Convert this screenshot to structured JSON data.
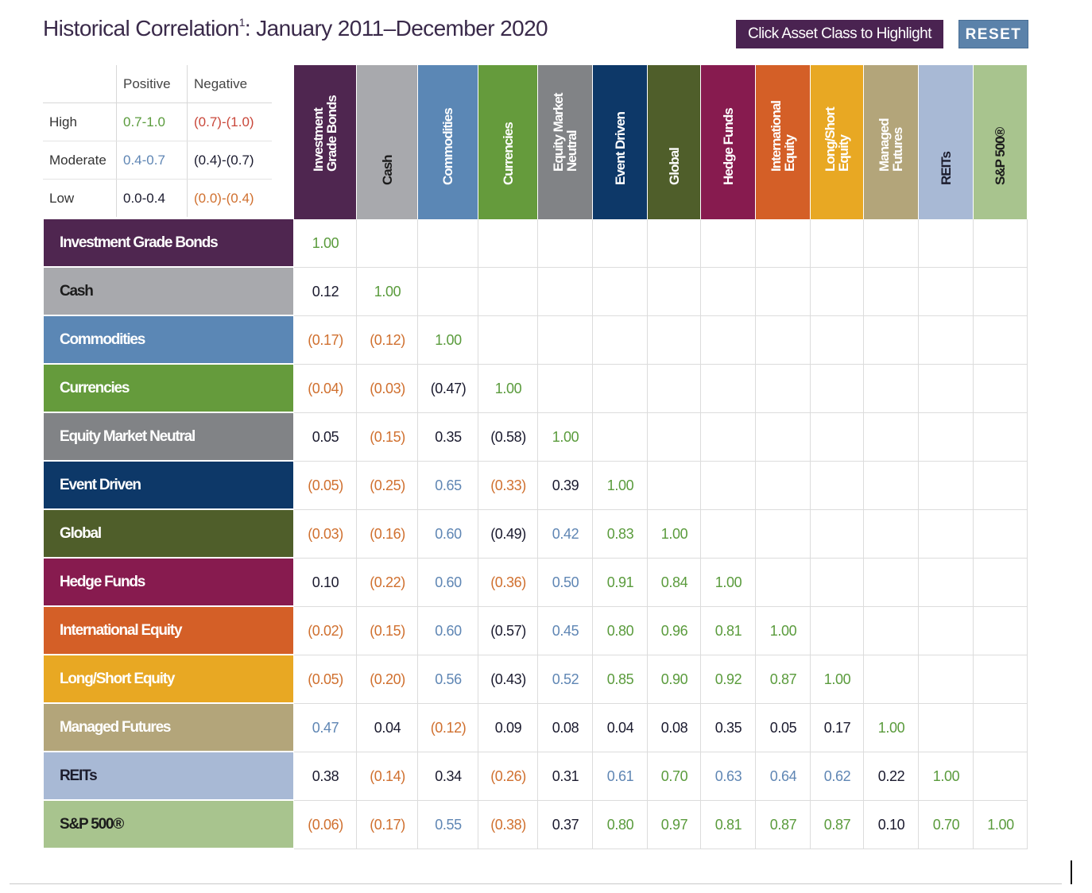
{
  "title": {
    "main": "Historical Correlation",
    "sup": "1",
    "range": ": January 2011–December 2020"
  },
  "buttons": {
    "highlight": "Click Asset Class to Highlight",
    "reset": "RESET"
  },
  "legend": {
    "header": {
      "positive": "Positive",
      "negative": "Negative"
    },
    "rows": [
      {
        "label": "High",
        "positive": "0.7-1.0",
        "negative": "(0.7)-(1.0)"
      },
      {
        "label": "Moderate",
        "positive": "0.4-0.7",
        "negative": "(0.4)-(0.7)"
      },
      {
        "label": "Low",
        "positive": "0.0-0.4",
        "negative": "(0.0)-(0.4)"
      }
    ]
  },
  "colors": {
    "pos_high": "#5a9b3c",
    "pos_mod": "#5f86b4",
    "pos_low": "#1a1a2e",
    "neg_high": "#c9473a",
    "neg_mod": "#1a1a2e",
    "neg_low": "#d0702f"
  },
  "assets": [
    {
      "name": "Investment Grade Bonds",
      "col": "Investment\nGrade Bonds",
      "color": "#4f2650",
      "text": "#ffffff"
    },
    {
      "name": "Cash",
      "col": "Cash",
      "color": "#a8a9ad",
      "text": "#1c1c1c"
    },
    {
      "name": "Commodities",
      "col": "Commodities",
      "color": "#5b87b5",
      "text": "#ffffff"
    },
    {
      "name": "Currencies",
      "col": "Currencies",
      "color": "#659b3c",
      "text": "#ffffff"
    },
    {
      "name": "Equity Market Neutral",
      "col": "Equity Market\nNeutral",
      "color": "#818386",
      "text": "#ffffff"
    },
    {
      "name": "Event Driven",
      "col": "Event Driven",
      "color": "#0d3868",
      "text": "#ffffff"
    },
    {
      "name": "Global",
      "col": "Global",
      "color": "#4f5e2a",
      "text": "#ffffff"
    },
    {
      "name": "Hedge Funds",
      "col": "Hedge Funds",
      "color": "#871b4f",
      "text": "#ffffff"
    },
    {
      "name": "International Equity",
      "col": "International\nEquity",
      "color": "#d45f27",
      "text": "#ffffff"
    },
    {
      "name": "Long/Short Equity",
      "col": "Long/Short\nEquity",
      "color": "#e8a823",
      "text": "#ffffff"
    },
    {
      "name": "Managed Futures",
      "col": "Managed\nFutures",
      "color": "#b3a57a",
      "text": "#ffffff"
    },
    {
      "name": "REITs",
      "col": "REITs",
      "color": "#a8b9d5",
      "text": "#1c1c2c"
    },
    {
      "name": "S&P 500®",
      "col": "S&P 500®",
      "color": "#a8c48e",
      "text": "#1c1c1c"
    }
  ],
  "matrix": [
    [
      "1.00"
    ],
    [
      "0.12",
      "1.00"
    ],
    [
      "(0.17)",
      "(0.12)",
      "1.00"
    ],
    [
      "(0.04)",
      "(0.03)",
      "(0.47)",
      "1.00"
    ],
    [
      "0.05",
      "(0.15)",
      "0.35",
      "(0.58)",
      "1.00"
    ],
    [
      "(0.05)",
      "(0.25)",
      "0.65",
      "(0.33)",
      "0.39",
      "1.00"
    ],
    [
      "(0.03)",
      "(0.16)",
      "0.60",
      "(0.49)",
      "0.42",
      "0.83",
      "1.00"
    ],
    [
      "0.10",
      "(0.22)",
      "0.60",
      "(0.36)",
      "0.50",
      "0.91",
      "0.84",
      "1.00"
    ],
    [
      "(0.02)",
      "(0.15)",
      "0.60",
      "(0.57)",
      "0.45",
      "0.80",
      "0.96",
      "0.81",
      "1.00"
    ],
    [
      "(0.05)",
      "(0.20)",
      "0.56",
      "(0.43)",
      "0.52",
      "0.85",
      "0.90",
      "0.92",
      "0.87",
      "1.00"
    ],
    [
      "0.47",
      "0.04",
      "(0.12)",
      "0.09",
      "0.08",
      "0.04",
      "0.08",
      "0.35",
      "0.05",
      "0.17",
      "1.00"
    ],
    [
      "0.38",
      "(0.14)",
      "0.34",
      "(0.26)",
      "0.31",
      "0.61",
      "0.70",
      "0.63",
      "0.64",
      "0.62",
      "0.22",
      "1.00"
    ],
    [
      "(0.06)",
      "(0.17)",
      "0.55",
      "(0.38)",
      "0.37",
      "0.80",
      "0.97",
      "0.81",
      "0.87",
      "0.87",
      "0.10",
      "0.70",
      "1.00"
    ]
  ]
}
